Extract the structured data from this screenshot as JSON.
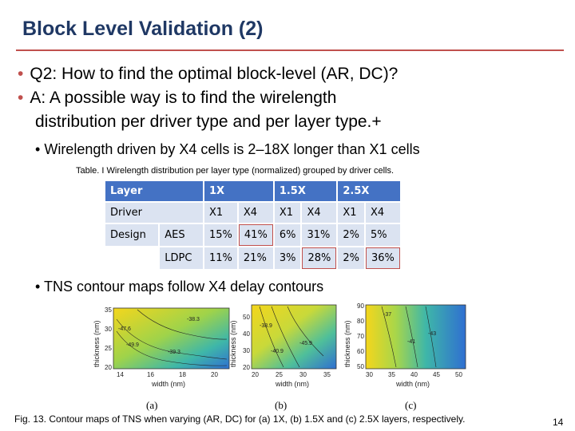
{
  "slide": {
    "title": "Block Level Validation (2)",
    "bullets": [
      "Q2: How to find the optimal block-level (AR, DC)?",
      "A: A possible way is to find the wirelength",
      "distribution per driver type and per layer type.+"
    ],
    "bullet_marker": "•",
    "sub_bullet_1": "Wirelength driven by X4 cells is 2–18X longer than X1 cells",
    "sub_bullet_2": "TNS contour maps follow X4 delay contours",
    "page_number": "14"
  },
  "table": {
    "caption": "Table. I Wirelength distribution per layer type (normalized) grouped by driver cells.",
    "header": {
      "layer": "Layer",
      "l1": "1X",
      "l2": "1.5X",
      "l3": "2.5X"
    },
    "driver_row": {
      "label": "Driver",
      "cols": [
        "X1",
        "X4",
        "X1",
        "X4",
        "X1",
        "X4"
      ]
    },
    "design_label": "Design",
    "rows": [
      {
        "name": "AES",
        "values": [
          "15%",
          "41%",
          "6%",
          "31%",
          "2%",
          "5%"
        ]
      },
      {
        "name": "LDPC",
        "values": [
          "11%",
          "21%",
          "3%",
          "28%",
          "2%",
          "36%"
        ]
      }
    ]
  },
  "figure": {
    "caption": "Fig. 13. Contour maps of TNS when varying (AR, DC) for (a) 1X, (b) 1.5X and (c) 2.5X layers, respectively.",
    "panels": [
      {
        "label": "(a)",
        "xlabel": "width (nm)",
        "ylabel": "thickness (nm)",
        "xticks": [
          "14",
          "16",
          "18",
          "20"
        ],
        "yticks": [
          "35",
          "30",
          "25",
          "20"
        ],
        "contour_labels": [
          "-38.3",
          "-39.3",
          "-47.6",
          "-49.9"
        ]
      },
      {
        "label": "(b)",
        "xlabel": "width (nm)",
        "ylabel": "thickness (nm)",
        "xticks": [
          "20",
          "25",
          "30",
          "35"
        ],
        "yticks": [
          "50",
          "40",
          "30",
          "20"
        ],
        "contour_labels": [
          "-38.9",
          "-40.9",
          "-45.9"
        ]
      },
      {
        "label": "(c)",
        "xlabel": "width (nm)",
        "ylabel": "thickness (nm)",
        "xticks": [
          "30",
          "35",
          "40",
          "45",
          "50"
        ],
        "yticks": [
          "90",
          "80",
          "70",
          "60",
          "50"
        ],
        "contour_labels": [
          "-37",
          "-41",
          "-43"
        ]
      }
    ]
  }
}
